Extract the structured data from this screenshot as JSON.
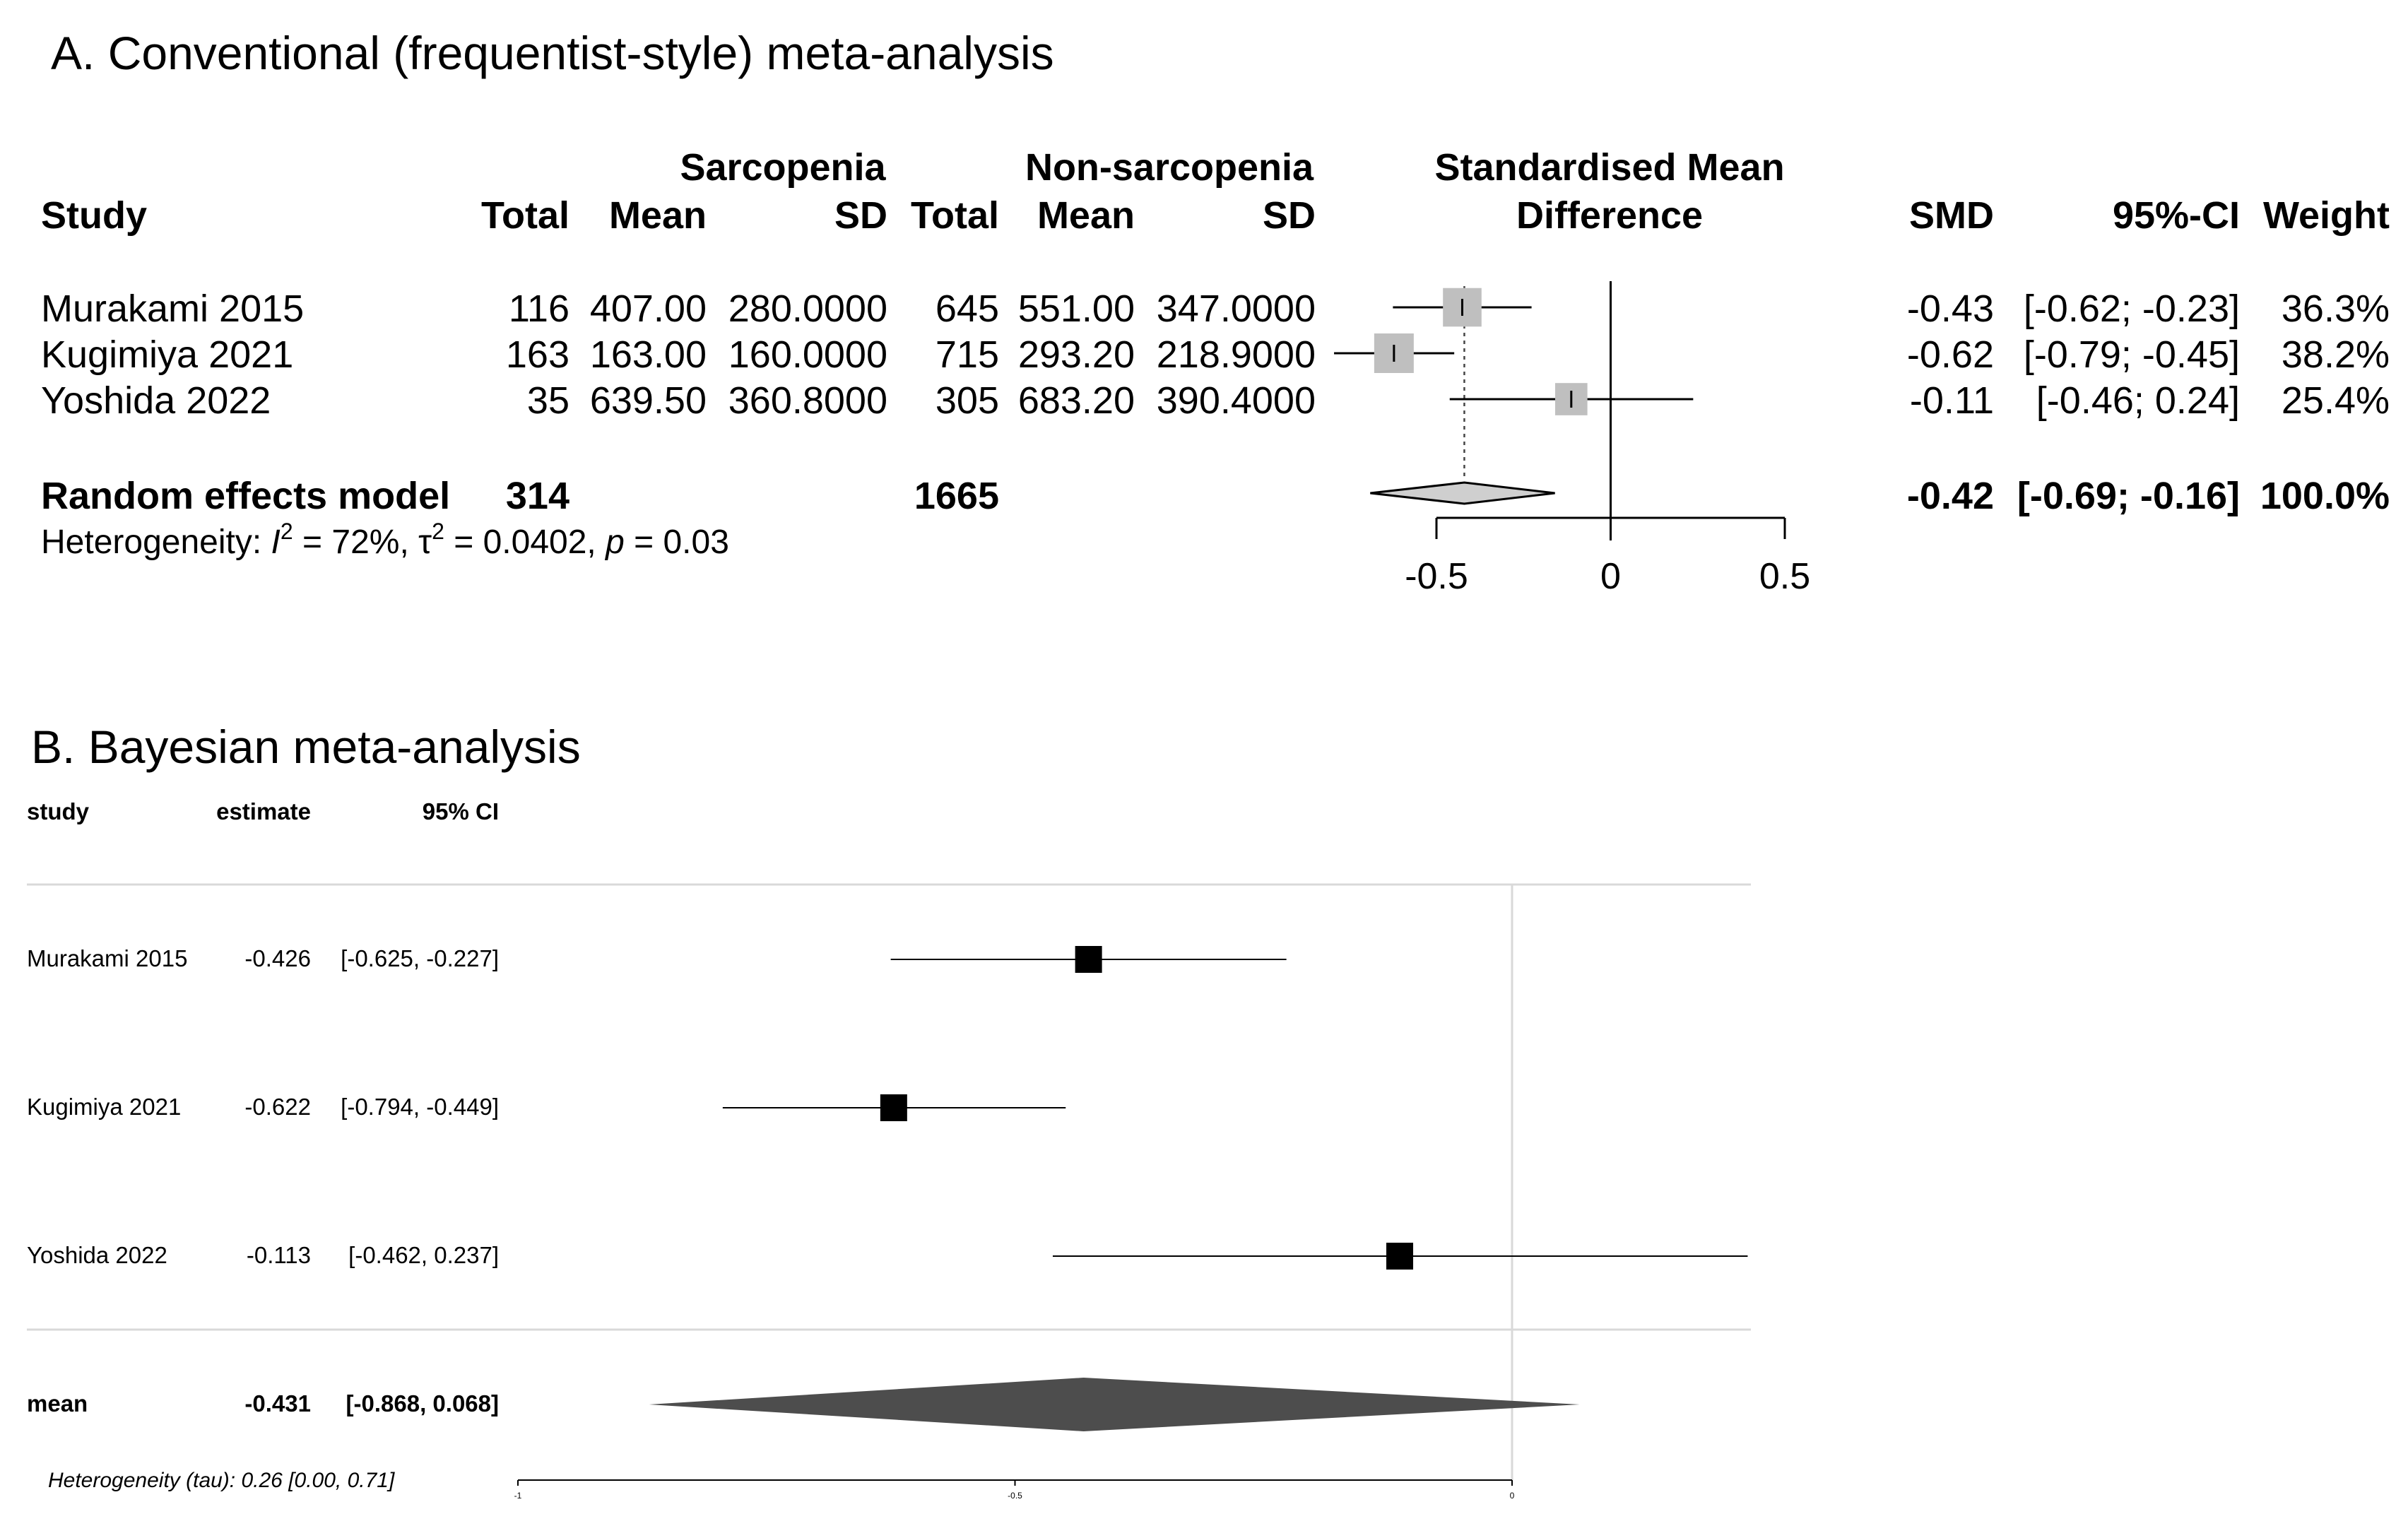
{
  "panel_a": {
    "title": "A. Conventional (frequentist-style) meta-analysis",
    "headers": {
      "group1": "Sarcopenia",
      "group2": "Non-sarcopenia",
      "smd_line1": "Standardised Mean",
      "smd_line2": "Difference",
      "study": "Study",
      "total1": "Total",
      "mean1": "Mean",
      "sd1": "SD",
      "total2": "Total",
      "mean2": "Mean",
      "sd2": "SD",
      "smd": "SMD",
      "ci": "95%-CI",
      "weight": "Weight"
    },
    "rows": [
      {
        "study": "Murakami 2015",
        "total1": "116",
        "mean1": "407.00",
        "sd1": "280.0000",
        "total2": "645",
        "mean2": "551.00",
        "sd2": "347.0000",
        "smd": "-0.43",
        "ci": "[-0.62; -0.23]",
        "weight": "36.3%"
      },
      {
        "study": "Kugimiya 2021",
        "total1": "163",
        "mean1": "163.00",
        "sd1": "160.0000",
        "total2": "715",
        "mean2": "293.20",
        "sd2": "218.9000",
        "smd": "-0.62",
        "ci": "[-0.79; -0.45]",
        "weight": "38.2%"
      },
      {
        "study": "Yoshida 2022",
        "total1": "35",
        "mean1": "639.50",
        "sd1": "360.8000",
        "total2": "305",
        "mean2": "683.20",
        "sd2": "390.4000",
        "smd": "-0.11",
        "ci": "[-0.46;  0.24]",
        "weight": "25.4%"
      }
    ],
    "pooled": {
      "label": "Random effects model",
      "total1": "314",
      "total2": "1665",
      "smd": "-0.42",
      "ci": "[-0.69; -0.16]",
      "weight": "100.0%"
    },
    "heterogeneity": {
      "prefix": "Heterogeneity: ",
      "i2_symbol": "I",
      "i2_value": " = 72%, ",
      "tau_symbol": "τ",
      "tau_value": " = 0.0402, ",
      "p_symbol": "p",
      "p_value": " = 0.03"
    }
  },
  "panel_b": {
    "title": "B. Bayesian meta-analysis",
    "headers": {
      "study": "study",
      "estimate": "estimate",
      "ci": "95% CI"
    },
    "rows": [
      {
        "study": "Murakami 2015",
        "estimate": "-0.426",
        "ci": "[-0.625, -0.227]"
      },
      {
        "study": "Kugimiya 2021",
        "estimate": "-0.622",
        "ci": "[-0.794, -0.449]"
      },
      {
        "study": "Yoshida 2022",
        "estimate": "-0.113",
        "ci": "[-0.462, 0.237]"
      }
    ],
    "pooled": {
      "label": "mean",
      "estimate": "-0.431",
      "ci": "[-0.868, 0.068]"
    },
    "heterogeneity": "Heterogeneity (tau): 0.26 [0.00, 0.71]"
  },
  "chart_data": [
    {
      "type": "forest",
      "title": "A. Conventional (frequentist-style) meta-analysis",
      "xlabel": "",
      "xlim": [
        -0.5,
        0.5
      ],
      "ticks": [
        -0.5,
        0,
        0.5
      ],
      "tick_labels": [
        "-0.5",
        "0",
        "0.5"
      ],
      "null_line": 0,
      "studies": [
        {
          "name": "Murakami 2015",
          "estimate": -0.426,
          "lower": -0.625,
          "upper": -0.227,
          "weight": 36.3
        },
        {
          "name": "Kugimiya 2021",
          "estimate": -0.622,
          "lower": -0.794,
          "upper": -0.449,
          "weight": 38.2
        },
        {
          "name": "Yoshida 2022",
          "estimate": -0.113,
          "lower": -0.462,
          "upper": 0.237,
          "weight": 25.4
        }
      ],
      "pooled": {
        "name": "Random effects model",
        "estimate": -0.42,
        "lower": -0.69,
        "upper": -0.16
      },
      "colors": {
        "box": "#bfbfbf",
        "diamond": "#cfcfcf",
        "line": "#000000"
      }
    },
    {
      "type": "forest",
      "title": "B. Bayesian meta-analysis",
      "xlabel": "",
      "xlim": [
        -1,
        0.237
      ],
      "ticks": [
        -1,
        -0.5,
        0
      ],
      "tick_labels": [
        "-1",
        "-0.5",
        "0"
      ],
      "null_line": 0,
      "studies": [
        {
          "name": "Murakami 2015",
          "estimate": -0.426,
          "lower": -0.625,
          "upper": -0.227
        },
        {
          "name": "Kugimiya 2021",
          "estimate": -0.622,
          "lower": -0.794,
          "upper": -0.449
        },
        {
          "name": "Yoshida 2022",
          "estimate": -0.113,
          "lower": -0.462,
          "upper": 0.237
        }
      ],
      "pooled": {
        "name": "mean",
        "estimate": -0.431,
        "lower": -0.868,
        "upper": 0.068
      },
      "colors": {
        "box": "#000000",
        "diamond": "#4d4d4d",
        "line": "#000000",
        "grid": "#d9d9d9"
      }
    }
  ]
}
